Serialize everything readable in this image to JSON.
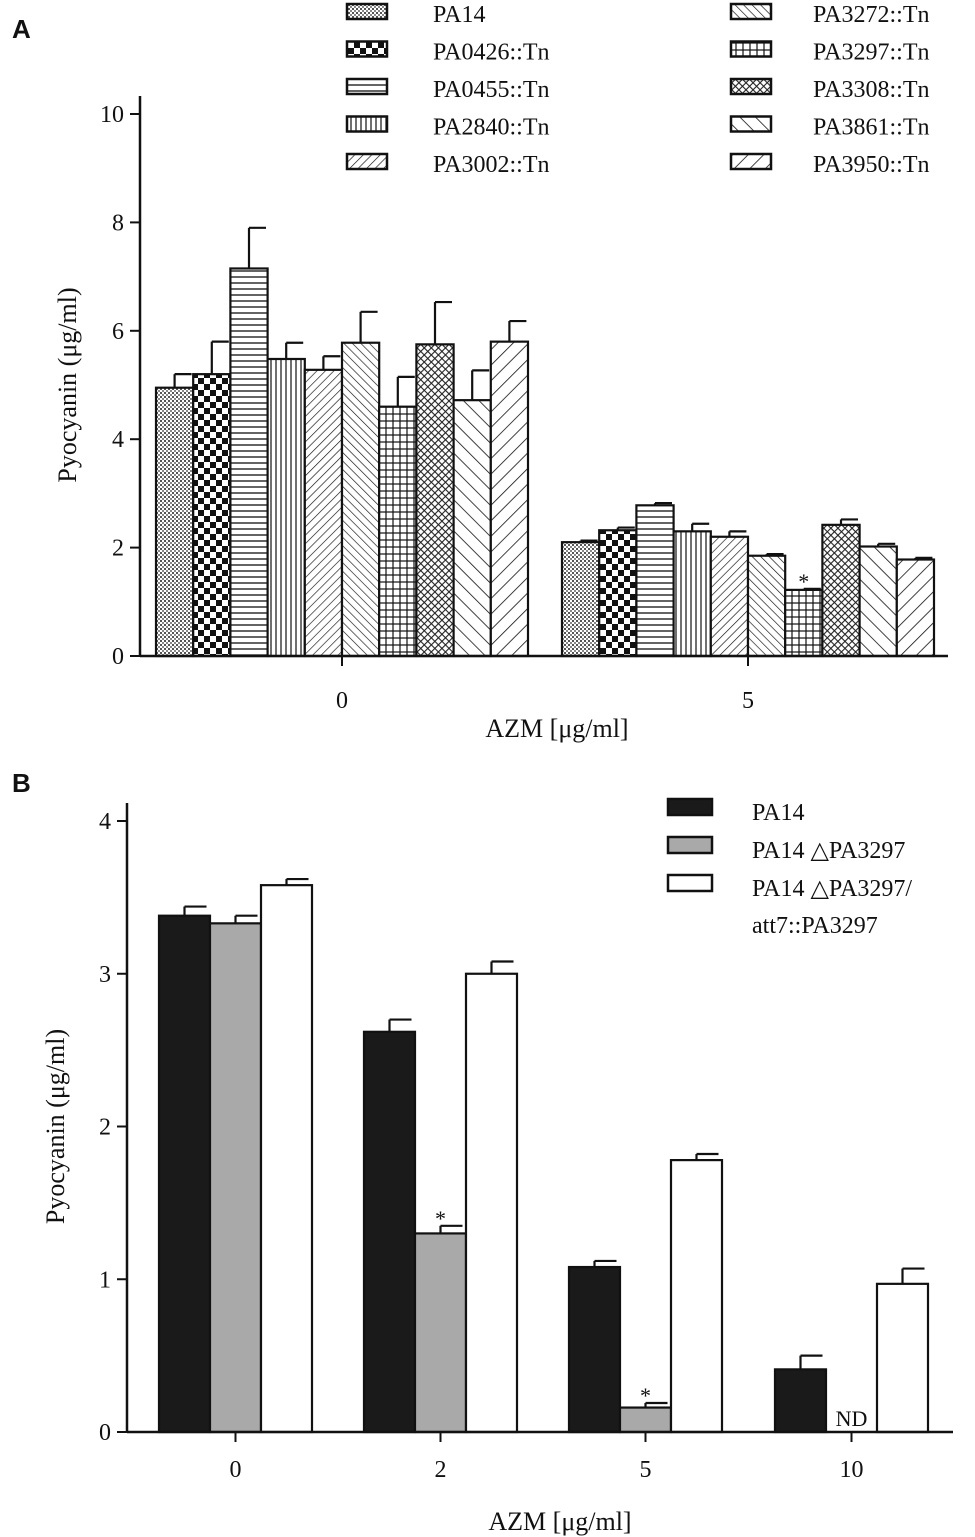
{
  "chart_data": [
    {
      "panel": "A",
      "type": "bar",
      "xlabel": "AZM [μg/ml]",
      "ylabel": "Pyocyanin (μg/ml)",
      "ylim": [
        0,
        10
      ],
      "yticks": [
        0,
        2,
        4,
        6,
        8,
        10
      ],
      "categories": [
        "0",
        "5"
      ],
      "series": [
        {
          "name": "PA14",
          "pattern": "fine-cross",
          "values": [
            4.95,
            2.1
          ],
          "errors": [
            0.25,
            0.03
          ]
        },
        {
          "name": "PA0426::Tn",
          "pattern": "checker",
          "values": [
            5.2,
            2.32
          ],
          "errors": [
            0.6,
            0.05
          ]
        },
        {
          "name": "PA0455::Tn",
          "pattern": "hlines",
          "values": [
            7.15,
            2.78
          ],
          "errors": [
            0.75,
            0.04
          ]
        },
        {
          "name": "PA2840::Tn",
          "pattern": "vlines",
          "values": [
            5.48,
            2.3
          ],
          "errors": [
            0.3,
            0.14
          ]
        },
        {
          "name": "PA3002::Tn",
          "pattern": "diag-up",
          "values": [
            5.28,
            2.2
          ],
          "errors": [
            0.25,
            0.1
          ]
        },
        {
          "name": "PA3272::Tn",
          "pattern": "diag-down",
          "values": [
            5.78,
            1.85
          ],
          "errors": [
            0.57,
            0.03
          ]
        },
        {
          "name": "PA3297::Tn",
          "pattern": "grid",
          "values": [
            4.6,
            1.22
          ],
          "errors": [
            0.55,
            0.02
          ]
        },
        {
          "name": "PA3308::Tn",
          "pattern": "dense-cross",
          "values": [
            5.75,
            2.42
          ],
          "errors": [
            0.78,
            0.1
          ]
        },
        {
          "name": "PA3861::Tn",
          "pattern": "wide-down",
          "values": [
            4.72,
            2.02
          ],
          "errors": [
            0.55,
            0.05
          ]
        },
        {
          "name": "PA3950::Tn",
          "pattern": "wide-up",
          "values": [
            5.8,
            1.78
          ],
          "errors": [
            0.38,
            0.03
          ]
        }
      ],
      "annotations": [
        {
          "text": "*",
          "series": "PA3297::Tn",
          "category": "5"
        }
      ]
    },
    {
      "panel": "B",
      "type": "bar",
      "xlabel": "AZM [μg/ml]",
      "ylabel": "Pyocyanin (μg/ml)",
      "ylim": [
        0,
        4
      ],
      "yticks": [
        0,
        1,
        2,
        3,
        4
      ],
      "categories": [
        "0",
        "2",
        "5",
        "10"
      ],
      "series": [
        {
          "name": "PA14",
          "color": "#1a1a1a",
          "values": [
            3.38,
            2.62,
            1.08,
            0.41
          ],
          "errors": [
            0.06,
            0.08,
            0.04,
            0.09
          ]
        },
        {
          "name": "PA14 △PA3297",
          "color": "#a9a9a9",
          "values": [
            3.33,
            1.3,
            0.16,
            null
          ],
          "errors": [
            0.05,
            0.05,
            0.03,
            null
          ]
        },
        {
          "name": "PA14 △PA3297/ att7::PA3297",
          "legend_lines": [
            "PA14 △PA3297/",
            "att7::PA3297"
          ],
          "color": "#ffffff",
          "values": [
            3.58,
            3.0,
            1.78,
            0.97
          ],
          "errors": [
            0.04,
            0.08,
            0.04,
            0.1
          ]
        }
      ],
      "annotations": [
        {
          "text": "*",
          "series": "PA14 △PA3297",
          "category": "2"
        },
        {
          "text": "*",
          "series": "PA14 △PA3297",
          "category": "5"
        },
        {
          "text": "ND",
          "series": "PA14 △PA3297",
          "category": "10"
        }
      ]
    }
  ]
}
